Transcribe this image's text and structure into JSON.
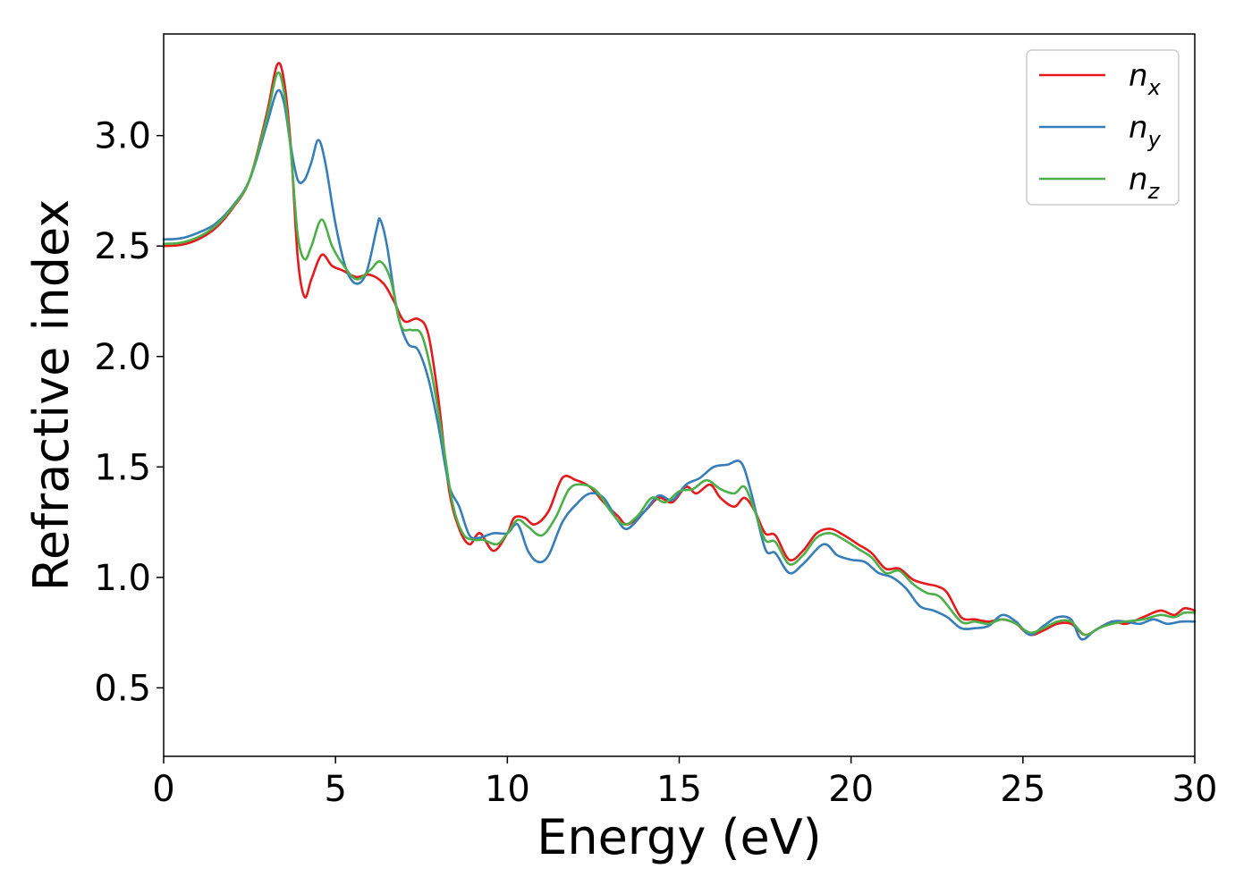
{
  "chart_data": {
    "type": "line",
    "title": "",
    "xlabel": "Energy (eV)",
    "ylabel": "Refractive index",
    "xlim": [
      0,
      30
    ],
    "ylim": [
      0.19,
      3.46
    ],
    "xticks": [
      0,
      5,
      10,
      15,
      20,
      25,
      30
    ],
    "yticks": [
      0.5,
      1.0,
      1.5,
      2.0,
      2.5,
      3.0
    ],
    "xtick_labels": [
      "0",
      "5",
      "10",
      "15",
      "20",
      "25",
      "30"
    ],
    "ytick_labels": [
      "0.5",
      "1.0",
      "1.5",
      "2.0",
      "2.5",
      "3.0"
    ],
    "grid": false,
    "legend": "top-right",
    "series": [
      {
        "name": "n_x",
        "name_base": "n",
        "name_sub": "x",
        "color": "#e41a1c",
        "points": [
          [
            0,
            2.5
          ],
          [
            0.5,
            2.505
          ],
          [
            1,
            2.53
          ],
          [
            1.5,
            2.58
          ],
          [
            2,
            2.67
          ],
          [
            2.5,
            2.8
          ],
          [
            3,
            3.1
          ],
          [
            3.3,
            3.32
          ],
          [
            3.5,
            3.25
          ],
          [
            3.7,
            2.95
          ],
          [
            3.9,
            2.45
          ],
          [
            4.1,
            2.27
          ],
          [
            4.3,
            2.35
          ],
          [
            4.6,
            2.46
          ],
          [
            4.9,
            2.41
          ],
          [
            5.2,
            2.39
          ],
          [
            5.6,
            2.36
          ],
          [
            6,
            2.37
          ],
          [
            6.4,
            2.33
          ],
          [
            6.7,
            2.25
          ],
          [
            7,
            2.16
          ],
          [
            7.4,
            2.17
          ],
          [
            7.7,
            2.1
          ],
          [
            8,
            1.8
          ],
          [
            8.3,
            1.4
          ],
          [
            8.6,
            1.22
          ],
          [
            8.9,
            1.15
          ],
          [
            9.2,
            1.2
          ],
          [
            9.6,
            1.12
          ],
          [
            10,
            1.2
          ],
          [
            10.2,
            1.27
          ],
          [
            10.5,
            1.27
          ],
          [
            10.8,
            1.24
          ],
          [
            11.2,
            1.3
          ],
          [
            11.6,
            1.45
          ],
          [
            12,
            1.44
          ],
          [
            12.4,
            1.41
          ],
          [
            12.8,
            1.34
          ],
          [
            13.2,
            1.28
          ],
          [
            13.5,
            1.24
          ],
          [
            14,
            1.3
          ],
          [
            14.4,
            1.36
          ],
          [
            14.8,
            1.34
          ],
          [
            15.2,
            1.41
          ],
          [
            15.5,
            1.38
          ],
          [
            15.9,
            1.42
          ],
          [
            16.2,
            1.36
          ],
          [
            16.6,
            1.32
          ],
          [
            16.9,
            1.36
          ],
          [
            17.2,
            1.3
          ],
          [
            17.5,
            1.2
          ],
          [
            17.8,
            1.19
          ],
          [
            18.2,
            1.08
          ],
          [
            18.6,
            1.12
          ],
          [
            19,
            1.2
          ],
          [
            19.4,
            1.22
          ],
          [
            19.8,
            1.19
          ],
          [
            20.2,
            1.15
          ],
          [
            20.6,
            1.11
          ],
          [
            21,
            1.04
          ],
          [
            21.4,
            1.04
          ],
          [
            21.8,
            0.99
          ],
          [
            22.2,
            0.97
          ],
          [
            22.5,
            0.96
          ],
          [
            22.8,
            0.93
          ],
          [
            23.2,
            0.82
          ],
          [
            23.6,
            0.81
          ],
          [
            24,
            0.8
          ],
          [
            24.4,
            0.81
          ],
          [
            24.8,
            0.79
          ],
          [
            25.2,
            0.74
          ],
          [
            25.6,
            0.76
          ],
          [
            26,
            0.79
          ],
          [
            26.4,
            0.79
          ],
          [
            26.8,
            0.74
          ],
          [
            27.2,
            0.77
          ],
          [
            27.6,
            0.8
          ],
          [
            28,
            0.79
          ],
          [
            28.5,
            0.82
          ],
          [
            29,
            0.85
          ],
          [
            29.4,
            0.83
          ],
          [
            29.7,
            0.86
          ],
          [
            30,
            0.85
          ]
        ]
      },
      {
        "name": "n_y",
        "name_base": "n",
        "name_sub": "y",
        "color": "#377eb8",
        "points": [
          [
            0,
            2.53
          ],
          [
            0.5,
            2.535
          ],
          [
            1,
            2.56
          ],
          [
            1.5,
            2.6
          ],
          [
            2,
            2.68
          ],
          [
            2.5,
            2.8
          ],
          [
            3,
            3.05
          ],
          [
            3.3,
            3.2
          ],
          [
            3.5,
            3.15
          ],
          [
            3.7,
            2.95
          ],
          [
            3.9,
            2.8
          ],
          [
            4.1,
            2.8
          ],
          [
            4.3,
            2.88
          ],
          [
            4.5,
            2.98
          ],
          [
            4.7,
            2.88
          ],
          [
            5,
            2.6
          ],
          [
            5.3,
            2.4
          ],
          [
            5.6,
            2.33
          ],
          [
            5.9,
            2.38
          ],
          [
            6.2,
            2.58
          ],
          [
            6.3,
            2.62
          ],
          [
            6.5,
            2.5
          ],
          [
            6.8,
            2.2
          ],
          [
            7.1,
            2.06
          ],
          [
            7.4,
            2.03
          ],
          [
            7.7,
            1.9
          ],
          [
            8,
            1.68
          ],
          [
            8.3,
            1.42
          ],
          [
            8.6,
            1.32
          ],
          [
            8.9,
            1.19
          ],
          [
            9.2,
            1.18
          ],
          [
            9.6,
            1.2
          ],
          [
            10,
            1.2
          ],
          [
            10.3,
            1.24
          ],
          [
            10.6,
            1.12
          ],
          [
            10.9,
            1.07
          ],
          [
            11.2,
            1.1
          ],
          [
            11.6,
            1.25
          ],
          [
            12,
            1.33
          ],
          [
            12.4,
            1.38
          ],
          [
            12.8,
            1.36
          ],
          [
            13.2,
            1.26
          ],
          [
            13.5,
            1.22
          ],
          [
            14,
            1.3
          ],
          [
            14.4,
            1.37
          ],
          [
            14.8,
            1.35
          ],
          [
            15.2,
            1.42
          ],
          [
            15.6,
            1.45
          ],
          [
            16,
            1.5
          ],
          [
            16.4,
            1.51
          ],
          [
            16.8,
            1.52
          ],
          [
            17.1,
            1.38
          ],
          [
            17.5,
            1.13
          ],
          [
            17.8,
            1.11
          ],
          [
            18.2,
            1.02
          ],
          [
            18.6,
            1.06
          ],
          [
            19.2,
            1.15
          ],
          [
            19.6,
            1.1
          ],
          [
            20,
            1.08
          ],
          [
            20.4,
            1.07
          ],
          [
            20.8,
            1.02
          ],
          [
            21.2,
            1
          ],
          [
            21.6,
            0.95
          ],
          [
            22,
            0.87
          ],
          [
            22.4,
            0.85
          ],
          [
            22.8,
            0.82
          ],
          [
            23.2,
            0.77
          ],
          [
            23.6,
            0.77
          ],
          [
            24,
            0.78
          ],
          [
            24.4,
            0.83
          ],
          [
            24.8,
            0.8
          ],
          [
            25.2,
            0.74
          ],
          [
            25.6,
            0.78
          ],
          [
            26,
            0.82
          ],
          [
            26.4,
            0.81
          ],
          [
            26.7,
            0.72
          ],
          [
            27.1,
            0.76
          ],
          [
            27.6,
            0.8
          ],
          [
            28,
            0.8
          ],
          [
            28.4,
            0.79
          ],
          [
            28.8,
            0.81
          ],
          [
            29.2,
            0.79
          ],
          [
            29.6,
            0.8
          ],
          [
            30,
            0.8
          ]
        ]
      },
      {
        "name": "n_z",
        "name_base": "n",
        "name_sub": "z",
        "color": "#4daf4a",
        "points": [
          [
            0,
            2.51
          ],
          [
            0.5,
            2.515
          ],
          [
            1,
            2.54
          ],
          [
            1.5,
            2.59
          ],
          [
            2,
            2.675
          ],
          [
            2.5,
            2.8
          ],
          [
            3,
            3.08
          ],
          [
            3.3,
            3.28
          ],
          [
            3.5,
            3.2
          ],
          [
            3.7,
            2.93
          ],
          [
            3.9,
            2.55
          ],
          [
            4.1,
            2.44
          ],
          [
            4.3,
            2.5
          ],
          [
            4.6,
            2.62
          ],
          [
            4.9,
            2.5
          ],
          [
            5.2,
            2.42
          ],
          [
            5.6,
            2.35
          ],
          [
            6,
            2.39
          ],
          [
            6.3,
            2.43
          ],
          [
            6.6,
            2.35
          ],
          [
            6.9,
            2.14
          ],
          [
            7.2,
            2.12
          ],
          [
            7.5,
            2.1
          ],
          [
            7.8,
            1.92
          ],
          [
            8.1,
            1.64
          ],
          [
            8.4,
            1.34
          ],
          [
            8.7,
            1.2
          ],
          [
            9,
            1.17
          ],
          [
            9.3,
            1.17
          ],
          [
            9.7,
            1.15
          ],
          [
            10,
            1.2
          ],
          [
            10.3,
            1.26
          ],
          [
            10.6,
            1.23
          ],
          [
            11,
            1.19
          ],
          [
            11.4,
            1.27
          ],
          [
            11.8,
            1.4
          ],
          [
            12.2,
            1.42
          ],
          [
            12.6,
            1.39
          ],
          [
            13,
            1.3
          ],
          [
            13.4,
            1.24
          ],
          [
            13.8,
            1.28
          ],
          [
            14.2,
            1.36
          ],
          [
            14.6,
            1.34
          ],
          [
            15,
            1.39
          ],
          [
            15.4,
            1.4
          ],
          [
            15.8,
            1.44
          ],
          [
            16.2,
            1.4
          ],
          [
            16.6,
            1.38
          ],
          [
            16.9,
            1.41
          ],
          [
            17.2,
            1.3
          ],
          [
            17.5,
            1.17
          ],
          [
            17.8,
            1.16
          ],
          [
            18.2,
            1.06
          ],
          [
            18.6,
            1.1
          ],
          [
            19,
            1.18
          ],
          [
            19.4,
            1.2
          ],
          [
            19.8,
            1.17
          ],
          [
            20.2,
            1.13
          ],
          [
            20.6,
            1.09
          ],
          [
            21,
            1.02
          ],
          [
            21.4,
            1.03
          ],
          [
            21.8,
            0.97
          ],
          [
            22.2,
            0.93
          ],
          [
            22.6,
            0.91
          ],
          [
            23.2,
            0.8
          ],
          [
            23.6,
            0.8
          ],
          [
            24,
            0.79
          ],
          [
            24.4,
            0.81
          ],
          [
            24.8,
            0.79
          ],
          [
            25.2,
            0.75
          ],
          [
            25.6,
            0.77
          ],
          [
            26,
            0.8
          ],
          [
            26.4,
            0.8
          ],
          [
            26.8,
            0.74
          ],
          [
            27.2,
            0.77
          ],
          [
            27.6,
            0.79
          ],
          [
            28,
            0.8
          ],
          [
            28.5,
            0.81
          ],
          [
            29,
            0.83
          ],
          [
            29.4,
            0.82
          ],
          [
            29.7,
            0.84
          ],
          [
            30,
            0.84
          ]
        ]
      }
    ]
  }
}
